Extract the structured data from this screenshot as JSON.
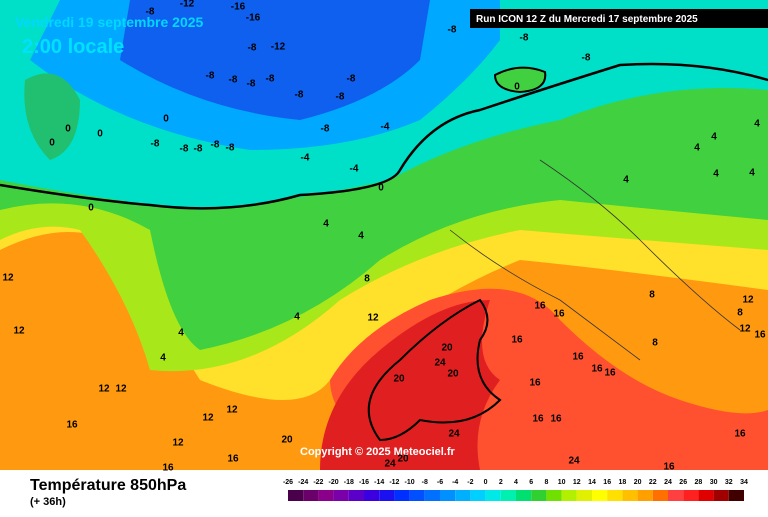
{
  "header": {
    "date": "Vendredi 19 septembre 2025",
    "time": "2:00 locale",
    "run": "Run ICON 12 Z du Mercredi 17 septembre 2025",
    "copyright": "Copyright © 2025 Meteociel.fr"
  },
  "footer": {
    "title": "Température 850hPa",
    "subtitle": "(+ 36h)"
  },
  "legend": {
    "labels": [
      -26,
      -24,
      -22,
      -20,
      -18,
      -16,
      -14,
      -12,
      -10,
      -8,
      -6,
      -4,
      -2,
      0,
      2,
      4,
      6,
      8,
      10,
      12,
      14,
      16,
      18,
      20,
      22,
      24,
      26,
      28,
      30,
      32,
      34
    ],
    "colors": [
      "#4a004a",
      "#6a006a",
      "#8a008a",
      "#7a00aa",
      "#5a00c8",
      "#3a00e0",
      "#1a10f0",
      "#0030ff",
      "#0050ff",
      "#0070ff",
      "#0090ff",
      "#00b0ff",
      "#00d0ff",
      "#00e8e8",
      "#00f0b0",
      "#00e070",
      "#30d030",
      "#70e000",
      "#b0f000",
      "#e0f000",
      "#ffff00",
      "#ffe000",
      "#ffc000",
      "#ffa000",
      "#ff7000",
      "#ff4040",
      "#ff2020",
      "#e00000",
      "#a00000",
      "#400000"
    ]
  },
  "map_labels": [
    "-8",
    "-12",
    "-16",
    "-16",
    "-8",
    "-8",
    "-8",
    "-12",
    "-8",
    "-8",
    "-8",
    "-8",
    "-8",
    "-8",
    "-8",
    "-8",
    "-8",
    "-4",
    "-8",
    "-8",
    "-8",
    "-8",
    "-8",
    "-4",
    "-4",
    "0",
    "0",
    "0",
    "0",
    "0",
    "0",
    "0",
    "4",
    "4",
    "4",
    "4",
    "4",
    "4",
    "4",
    "4",
    "4",
    "4",
    "4",
    "8",
    "8",
    "8",
    "8",
    "12",
    "12",
    "12",
    "12",
    "12",
    "12",
    "12",
    "12",
    "16",
    "16",
    "16",
    "16",
    "16",
    "16",
    "16",
    "16",
    "16",
    "16",
    "16",
    "16",
    "16",
    "16",
    "20",
    "20",
    "20",
    "20",
    "20",
    "24",
    "24",
    "24",
    "24",
    "12",
    "12",
    "16"
  ]
}
